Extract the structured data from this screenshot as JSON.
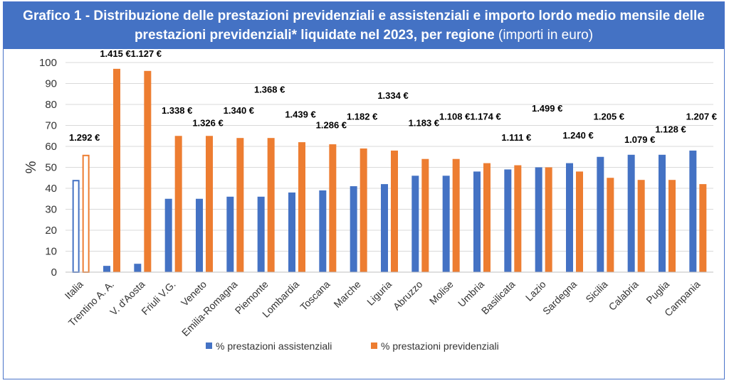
{
  "title": {
    "main": "Grafico 1 - Distribuzione delle prestazioni previdenziali e assistenziali e importo lordo medio mensile delle prestazioni previdenziali* liquidate nel 2023, per regione",
    "subtitle": "(importi in euro)"
  },
  "colors": {
    "assistenziali": "#4472c4",
    "previdenziali": "#ed7d31",
    "title_bg": "#4472c4",
    "grid": "#d9d9d9"
  },
  "chart_data": {
    "type": "bar",
    "title": "Grafico 1 - Distribuzione delle prestazioni previdenziali e assistenziali e importo lordo medio mensile delle prestazioni previdenziali* liquidate nel 2023, per regione (importi in euro)",
    "xlabel": "",
    "ylabel": "%",
    "ylim": [
      0,
      100
    ],
    "yticks": [
      0,
      10,
      20,
      30,
      40,
      50,
      60,
      70,
      80,
      90,
      100
    ],
    "grid": true,
    "legend_position": "bottom",
    "categories": [
      "Italia",
      "Trentino A. A.",
      "V. d'Aosta",
      "Friuli V.G.",
      "Veneto",
      "Emilia-Romagna",
      "Piemonte",
      "Lombardia",
      "Toscana",
      "Marche",
      "Liguria",
      "Abruzzo",
      "Molise",
      "Umbria",
      "Basilicata",
      "Lazio",
      "Sardegna",
      "Sicilia",
      "Calabria",
      "Puglia",
      "Campania"
    ],
    "series": [
      {
        "name": "% prestazioni assistenziali",
        "values": [
          44,
          3,
          4,
          35,
          35,
          36,
          36,
          38,
          39,
          41,
          42,
          46,
          46,
          48,
          49,
          50,
          52,
          55,
          56,
          56,
          58
        ]
      },
      {
        "name": "% prestazioni previdenziali",
        "values": [
          56,
          97,
          96,
          65,
          65,
          64,
          64,
          62,
          61,
          59,
          58,
          54,
          54,
          52,
          51,
          50,
          48,
          45,
          44,
          44,
          42
        ]
      }
    ],
    "amounts": [
      {
        "label": "1.292 €",
        "level": 62
      },
      {
        "label": "1.415 €",
        "level": 102
      },
      {
        "label": "1.127 €",
        "level": 102
      },
      {
        "label": "1.338 €",
        "level": 75
      },
      {
        "label": "1.326 €",
        "level": 69
      },
      {
        "label": "1.340 €",
        "level": 75
      },
      {
        "label": "1.368 €",
        "level": 85
      },
      {
        "label": "1.439 €",
        "level": 73
      },
      {
        "label": "1.286 €",
        "level": 68
      },
      {
        "label": "1.182 €",
        "level": 72
      },
      {
        "label": "1.334 €",
        "level": 82
      },
      {
        "label": "1.183 €",
        "level": 69
      },
      {
        "label": "1.108 €",
        "level": 72
      },
      {
        "label": "1.174 €",
        "level": 72
      },
      {
        "label": "1.111 €",
        "level": 62
      },
      {
        "label": "1.499 €",
        "level": 76
      },
      {
        "label": "1.240 €",
        "level": 63
      },
      {
        "label": "1.205 €",
        "level": 72
      },
      {
        "label": "1.079 €",
        "level": 61
      },
      {
        "label": "1.128 €",
        "level": 66
      },
      {
        "label": "1.207 €",
        "level": 72
      }
    ],
    "outlined_categories": [
      "Italia"
    ]
  }
}
